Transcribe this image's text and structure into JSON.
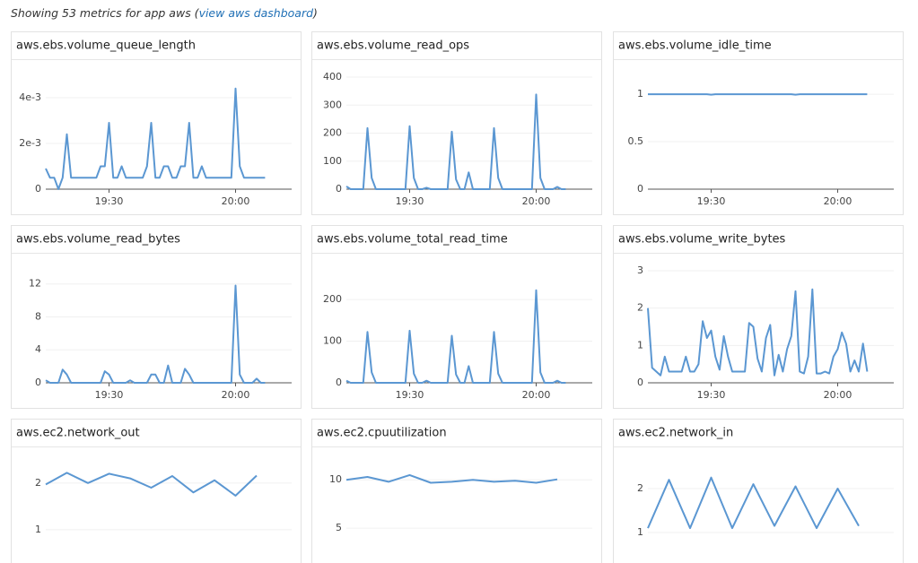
{
  "header": {
    "text": "Showing 53 metrics for app aws (",
    "link": "view aws dashboard",
    "suffix": ")"
  },
  "chart_data": [
    {
      "type": "line",
      "title": "aws.ebs.volume_queue_length",
      "color": "#5b97d2",
      "grid": true,
      "x": [
        "19:15",
        "19:16",
        "19:17",
        "19:18",
        "19:19",
        "19:20",
        "19:21",
        "19:22",
        "19:23",
        "19:24",
        "19:25",
        "19:26",
        "19:27",
        "19:28",
        "19:29",
        "19:30",
        "19:31",
        "19:32",
        "19:33",
        "19:34",
        "19:35",
        "19:36",
        "19:37",
        "19:38",
        "19:39",
        "19:40",
        "19:41",
        "19:42",
        "19:43",
        "19:44",
        "19:45",
        "19:46",
        "19:47",
        "19:48",
        "19:49",
        "19:50",
        "19:51",
        "19:52",
        "19:53",
        "19:54",
        "19:55",
        "19:56",
        "19:57",
        "19:58",
        "19:59",
        "20:00",
        "20:01",
        "20:02",
        "20:03",
        "20:04",
        "20:05",
        "20:06",
        "20:07"
      ],
      "values": [
        0.0009,
        0.0005,
        0.0005,
        0,
        0.0005,
        0.0024,
        0.0005,
        0.0005,
        0.0005,
        0.0005,
        0.0005,
        0.0005,
        0.0005,
        0.001,
        0.001,
        0.0029,
        0.0005,
        0.0005,
        0.001,
        0.0005,
        0.0005,
        0.0005,
        0.0005,
        0.0005,
        0.001,
        0.0029,
        0.0005,
        0.0005,
        0.001,
        0.001,
        0.0005,
        0.0005,
        0.001,
        0.001,
        0.0029,
        0.0005,
        0.0005,
        0.001,
        0.0005,
        0.0005,
        0.0005,
        0.0005,
        0.0005,
        0.0005,
        0.0005,
        0.0044,
        0.001,
        0.0005,
        0.0005,
        0.0005,
        0.0005,
        0.0005,
        0.0005
      ],
      "xlim": [
        "19:15",
        "20:07"
      ],
      "xticks": [
        "19:30",
        "20:00"
      ],
      "ylim": [
        0,
        0.0049
      ],
      "yticks": [
        0,
        {
          "value": 0.002,
          "label": "2e-3"
        },
        {
          "value": 0.004,
          "label": "4e-3"
        }
      ]
    },
    {
      "type": "line",
      "title": "aws.ebs.volume_read_ops",
      "color": "#5b97d2",
      "grid": true,
      "x": [
        "19:15",
        "19:16",
        "19:17",
        "19:18",
        "19:19",
        "19:20",
        "19:21",
        "19:22",
        "19:23",
        "19:24",
        "19:25",
        "19:26",
        "19:27",
        "19:28",
        "19:29",
        "19:30",
        "19:31",
        "19:32",
        "19:33",
        "19:34",
        "19:35",
        "19:36",
        "19:37",
        "19:38",
        "19:39",
        "19:40",
        "19:41",
        "19:42",
        "19:43",
        "19:44",
        "19:45",
        "19:46",
        "19:47",
        "19:48",
        "19:49",
        "19:50",
        "19:51",
        "19:52",
        "19:53",
        "19:54",
        "19:55",
        "19:56",
        "19:57",
        "19:58",
        "19:59",
        "20:00",
        "20:01",
        "20:02",
        "20:03",
        "20:04",
        "20:05",
        "20:06",
        "20:07"
      ],
      "values": [
        10,
        0,
        0,
        0,
        0,
        218,
        40,
        0,
        0,
        0,
        0,
        0,
        0,
        0,
        0,
        225,
        40,
        0,
        0,
        5,
        0,
        0,
        0,
        0,
        0,
        205,
        35,
        0,
        0,
        60,
        0,
        0,
        0,
        0,
        0,
        218,
        40,
        0,
        0,
        0,
        0,
        0,
        0,
        0,
        0,
        338,
        40,
        0,
        0,
        0,
        8,
        0,
        0
      ],
      "xlim": [
        "19:15",
        "20:07"
      ],
      "xticks": [
        "19:30",
        "20:00"
      ],
      "ylim": [
        0,
        400
      ],
      "yticks": [
        0,
        100,
        200,
        300,
        400
      ]
    },
    {
      "type": "line",
      "title": "aws.ebs.volume_idle_time",
      "color": "#5b97d2",
      "grid": true,
      "x": [
        "19:15",
        "19:16",
        "19:17",
        "19:18",
        "19:19",
        "19:20",
        "19:21",
        "19:22",
        "19:23",
        "19:24",
        "19:25",
        "19:26",
        "19:27",
        "19:28",
        "19:29",
        "19:30",
        "19:31",
        "19:32",
        "19:33",
        "19:34",
        "19:35",
        "19:36",
        "19:37",
        "19:38",
        "19:39",
        "19:40",
        "19:41",
        "19:42",
        "19:43",
        "19:44",
        "19:45",
        "19:46",
        "19:47",
        "19:48",
        "19:49",
        "19:50",
        "19:51",
        "19:52",
        "19:53",
        "19:54",
        "19:55",
        "19:56",
        "19:57",
        "19:58",
        "19:59",
        "20:00",
        "20:01",
        "20:02",
        "20:03",
        "20:04",
        "20:05",
        "20:06",
        "20:07"
      ],
      "values": [
        1,
        1,
        1,
        1,
        1,
        1,
        1,
        1,
        1,
        1,
        1,
        1,
        1,
        1,
        1,
        0.995,
        1,
        1,
        1,
        1,
        1,
        1,
        1,
        1,
        1,
        1,
        1,
        1,
        1,
        1,
        1,
        1,
        1,
        1,
        1,
        0.995,
        1,
        1,
        1,
        1,
        1,
        1,
        1,
        1,
        1,
        1,
        1,
        1,
        1,
        1,
        1,
        1,
        1
      ],
      "xlim": [
        "19:15",
        "20:07"
      ],
      "xticks": [
        "19:30",
        "20:00"
      ],
      "ylim": [
        0,
        1.18
      ],
      "yticks": [
        0,
        0.5,
        1
      ]
    },
    {
      "type": "line",
      "title": "aws.ebs.volume_read_bytes",
      "color": "#5b97d2",
      "grid": true,
      "x": [
        "19:15",
        "19:16",
        "19:17",
        "19:18",
        "19:19",
        "19:20",
        "19:21",
        "19:22",
        "19:23",
        "19:24",
        "19:25",
        "19:26",
        "19:27",
        "19:28",
        "19:29",
        "19:30",
        "19:31",
        "19:32",
        "19:33",
        "19:34",
        "19:35",
        "19:36",
        "19:37",
        "19:38",
        "19:39",
        "19:40",
        "19:41",
        "19:42",
        "19:43",
        "19:44",
        "19:45",
        "19:46",
        "19:47",
        "19:48",
        "19:49",
        "19:50",
        "19:51",
        "19:52",
        "19:53",
        "19:54",
        "19:55",
        "19:56",
        "19:57",
        "19:58",
        "19:59",
        "20:00",
        "20:01",
        "20:02",
        "20:03",
        "20:04",
        "20:05",
        "20:06",
        "20:07"
      ],
      "values": [
        0.3,
        0,
        0,
        0,
        1.6,
        1,
        0,
        0,
        0,
        0,
        0,
        0,
        0,
        0,
        1.4,
        1,
        0,
        0,
        0,
        0,
        0.3,
        0,
        0,
        0,
        0,
        1,
        1,
        0,
        0,
        2.1,
        0,
        0,
        0,
        1.7,
        1,
        0,
        0,
        0,
        0,
        0,
        0,
        0,
        0,
        0,
        0,
        11.8,
        1,
        0,
        0,
        0,
        0.5,
        0,
        0
      ],
      "xlim": [
        "19:15",
        "20:07"
      ],
      "xticks": [
        "19:30",
        "20:00"
      ],
      "ylim": [
        0,
        13.6
      ],
      "yticks": [
        0,
        4,
        8,
        12
      ]
    },
    {
      "type": "line",
      "title": "aws.ebs.volume_total_read_time",
      "color": "#5b97d2",
      "grid": true,
      "x": [
        "19:15",
        "19:16",
        "19:17",
        "19:18",
        "19:19",
        "19:20",
        "19:21",
        "19:22",
        "19:23",
        "19:24",
        "19:25",
        "19:26",
        "19:27",
        "19:28",
        "19:29",
        "19:30",
        "19:31",
        "19:32",
        "19:33",
        "19:34",
        "19:35",
        "19:36",
        "19:37",
        "19:38",
        "19:39",
        "19:40",
        "19:41",
        "19:42",
        "19:43",
        "19:44",
        "19:45",
        "19:46",
        "19:47",
        "19:48",
        "19:49",
        "19:50",
        "19:51",
        "19:52",
        "19:53",
        "19:54",
        "19:55",
        "19:56",
        "19:57",
        "19:58",
        "19:59",
        "20:00",
        "20:01",
        "20:02",
        "20:03",
        "20:04",
        "20:05",
        "20:06",
        "20:07"
      ],
      "values": [
        5,
        0,
        0,
        0,
        0,
        122,
        25,
        0,
        0,
        0,
        0,
        0,
        0,
        0,
        0,
        125,
        22,
        0,
        0,
        5,
        0,
        0,
        0,
        0,
        0,
        113,
        20,
        0,
        0,
        40,
        0,
        0,
        0,
        0,
        0,
        122,
        22,
        0,
        0,
        0,
        0,
        0,
        0,
        0,
        0,
        222,
        25,
        0,
        0,
        0,
        5,
        0,
        0
      ],
      "xlim": [
        "19:15",
        "20:07"
      ],
      "xticks": [
        "19:30",
        "20:00"
      ],
      "ylim": [
        0,
        269
      ],
      "yticks": [
        0,
        100,
        200
      ]
    },
    {
      "type": "line",
      "title": "aws.ebs.volume_write_bytes",
      "color": "#5b97d2",
      "grid": true,
      "x": [
        "19:15",
        "19:16",
        "19:17",
        "19:18",
        "19:19",
        "19:20",
        "19:21",
        "19:22",
        "19:23",
        "19:24",
        "19:25",
        "19:26",
        "19:27",
        "19:28",
        "19:29",
        "19:30",
        "19:31",
        "19:32",
        "19:33",
        "19:34",
        "19:35",
        "19:36",
        "19:37",
        "19:38",
        "19:39",
        "19:40",
        "19:41",
        "19:42",
        "19:43",
        "19:44",
        "19:45",
        "19:46",
        "19:47",
        "19:48",
        "19:49",
        "19:50",
        "19:51",
        "19:52",
        "19:53",
        "19:54",
        "19:55",
        "19:56",
        "19:57",
        "19:58",
        "19:59",
        "20:00",
        "20:01",
        "20:02",
        "20:03",
        "20:04",
        "20:05",
        "20:06",
        "20:07"
      ],
      "values": [
        2,
        0.4,
        0.3,
        0.2,
        0.7,
        0.3,
        0.3,
        0.3,
        0.3,
        0.7,
        0.3,
        0.3,
        0.5,
        1.65,
        1.2,
        1.4,
        0.7,
        0.35,
        1.25,
        0.7,
        0.3,
        0.3,
        0.3,
        0.3,
        1.6,
        1.5,
        0.65,
        0.3,
        1.2,
        1.55,
        0.2,
        0.75,
        0.3,
        0.9,
        1.25,
        2.45,
        0.3,
        0.25,
        0.7,
        2.5,
        0.25,
        0.25,
        0.3,
        0.25,
        0.7,
        0.9,
        1.35,
        1.05,
        0.3,
        0.6,
        0.3,
        1.05,
        0.3
      ],
      "xlim": [
        "19:15",
        "20:07"
      ],
      "xticks": [
        "19:30",
        "20:00"
      ],
      "ylim": [
        0,
        3
      ],
      "yticks": [
        0,
        1,
        2,
        3
      ]
    },
    {
      "type": "line",
      "title": "aws.ec2.network_out",
      "color": "#5b97d2",
      "grid": true,
      "x": [
        "19:15",
        "19:20",
        "19:25",
        "19:30",
        "19:35",
        "19:40",
        "19:45",
        "19:50",
        "19:55",
        "20:00",
        "20:05"
      ],
      "values": [
        1.97,
        2.22,
        2,
        2.2,
        2.1,
        1.9,
        2.15,
        1.8,
        2.06,
        1.73,
        2.16
      ],
      "xlim": [
        "19:15",
        "20:07"
      ],
      "ylim": [
        0,
        2.4
      ],
      "yticks": [
        1,
        2
      ]
    },
    {
      "type": "line",
      "title": "aws.ec2.cpuutilization",
      "color": "#5b97d2",
      "grid": true,
      "x": [
        "19:15",
        "19:20",
        "19:25",
        "19:30",
        "19:35",
        "19:40",
        "19:45",
        "19:50",
        "19:55",
        "20:00",
        "20:05"
      ],
      "values": [
        10,
        10.3,
        9.8,
        10.5,
        9.7,
        9.8,
        10,
        9.8,
        9.9,
        9.7,
        10.05
      ],
      "xlim": [
        "19:15",
        "20:07"
      ],
      "ylim": [
        0,
        11.6
      ],
      "yticks": [
        5,
        10
      ]
    },
    {
      "type": "line",
      "title": "aws.ec2.network_in",
      "color": "#5b97d2",
      "grid": true,
      "x": [
        "19:15",
        "19:20",
        "19:25",
        "19:30",
        "19:35",
        "19:40",
        "19:45",
        "19:50",
        "19:55",
        "20:00",
        "20:05"
      ],
      "values": [
        1.1,
        2.2,
        1.1,
        2.25,
        1.1,
        2.1,
        1.15,
        2.05,
        1.1,
        2,
        1.15
      ],
      "xlim": [
        "19:15",
        "20:07"
      ],
      "ylim": [
        0,
        2.55
      ],
      "yticks": [
        1,
        2
      ]
    }
  ]
}
